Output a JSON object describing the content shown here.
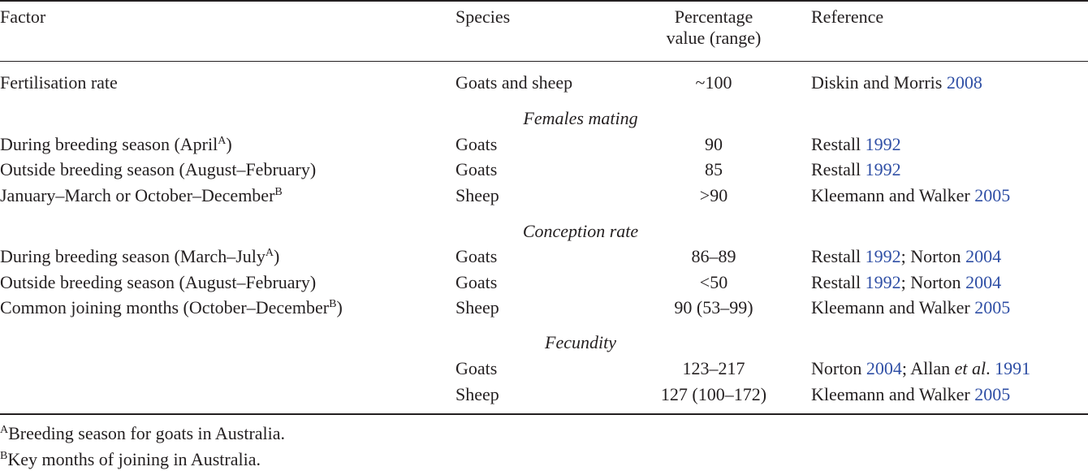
{
  "table": {
    "headers": {
      "factor": "Factor",
      "species": "Species",
      "percentage_line1": "Percentage",
      "percentage_line2": "value (range)",
      "reference": "Reference"
    },
    "fertilisation": {
      "factor": "Fertilisation rate",
      "species": "Goats and sheep",
      "value": "~100",
      "ref_text": "Diskin and Morris ",
      "ref_year": "2008"
    },
    "sections": {
      "females_mating": "Females mating",
      "conception_rate": "Conception rate",
      "fecundity": "Fecundity"
    },
    "females_mating": [
      {
        "factor": "During breeding season (April",
        "sup": "A",
        "factor_end": ")",
        "species": "Goats",
        "value": "90",
        "ref1": "Restall ",
        "ref1_year": "1992"
      },
      {
        "factor": "Outside breeding season (August–February)",
        "species": "Goats",
        "value": "85",
        "ref1": "Restall ",
        "ref1_year": "1992"
      },
      {
        "factor": "January–March or October–December",
        "sup": "B",
        "species": "Sheep",
        "value": ">90",
        "ref1": "Kleemann and Walker ",
        "ref1_year": "2005"
      }
    ],
    "conception_rate": [
      {
        "factor": "During breeding season (March–July",
        "sup": "A",
        "factor_end": ")",
        "species": "Goats",
        "value": "86–89",
        "ref1": "Restall ",
        "ref1_year": "1992",
        "ref_sep": "; Norton ",
        "ref2_year": "2004"
      },
      {
        "factor": "Outside breeding season (August–February)",
        "species": "Goats",
        "value": "<50",
        "ref1": "Restall ",
        "ref1_year": "1992",
        "ref_sep": "; Norton ",
        "ref2_year": "2004"
      },
      {
        "factor": "Common joining months (October–December",
        "sup": "B",
        "factor_end": ")",
        "species": "Sheep",
        "value": "90 (53–99)",
        "ref1": "Kleemann and Walker ",
        "ref1_year": "2005"
      }
    ],
    "fecundity": [
      {
        "species": "Goats",
        "value": "123–217",
        "ref1": "Norton ",
        "ref1_year": "2004",
        "ref_sep": "; Allan ",
        "ref_etal": "et al",
        "ref_dot": ". ",
        "ref2_year": "1991"
      },
      {
        "species": "Sheep",
        "value": "127 (100–172)",
        "ref1": "Kleemann and Walker ",
        "ref1_year": "2005"
      }
    ]
  },
  "footnotes": [
    {
      "mark": "A",
      "text": "Breeding season for goats in Australia."
    },
    {
      "mark": "B",
      "text": "Key months of joining in Australia."
    }
  ],
  "colors": {
    "text": "#231f20",
    "link": "#2f4fa5"
  }
}
